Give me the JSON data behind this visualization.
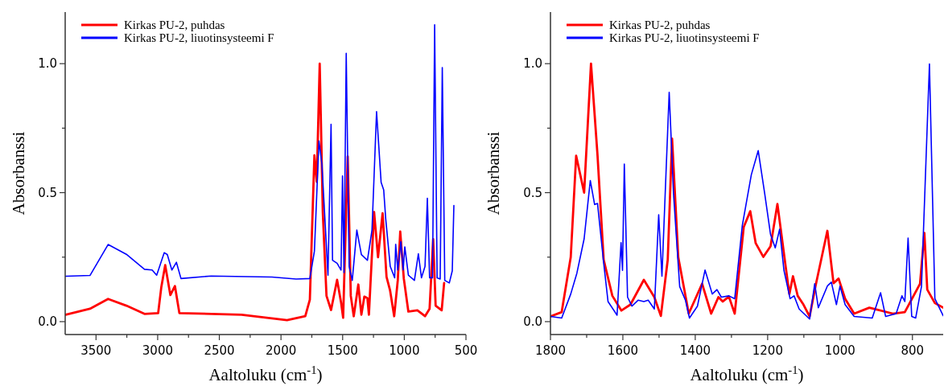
{
  "chart_data": [
    {
      "type": "line",
      "xlabel": "Aaltoluku (cm$^{-1}$)",
      "ylabel": "Absorbanssi",
      "legend": "top left",
      "grid": false,
      "xlim": [
        3750,
        500
      ],
      "xticks": [
        3500,
        3000,
        2500,
        2000,
        1500,
        1000,
        500,
        {
          "value": 3250,
          "label": null
        },
        {
          "value": 2750,
          "label": null
        },
        {
          "value": 2250,
          "label": null
        },
        {
          "value": 1750,
          "label": null
        },
        {
          "value": 1250,
          "label": null
        },
        {
          "value": 750,
          "label": null
        }
      ],
      "ylim": [
        -0.05,
        1.2
      ],
      "yticks": [
        {
          "value": 0,
          "label": "0.0"
        },
        {
          "value": 0.5,
          "label": "0.5"
        },
        {
          "value": 1,
          "label": "1.0"
        },
        {
          "value": 0.25,
          "label": null
        },
        {
          "value": 0.75,
          "label": null
        }
      ],
      "series": [
        {
          "name": "Kirkas PU-2, puhdas",
          "color": "#ff0000",
          "x": [
            3746,
            3549,
            3402,
            3254,
            3107,
            2996,
            2971,
            2939,
            2897,
            2860,
            2824,
            2320,
            1951,
            1803,
            1766,
            1729,
            1710,
            1686,
            1661,
            1631,
            1594,
            1545,
            1513,
            1496,
            1459,
            1434,
            1410,
            1373,
            1348,
            1324,
            1299,
            1287,
            1245,
            1213,
            1176,
            1144,
            1115,
            1082,
            1053,
            1033,
            1004,
            967,
            894,
            832,
            795,
            766,
            746,
            697,
            677
          ],
          "values": [
            0.027,
            0.05,
            0.088,
            0.062,
            0.03,
            0.033,
            0.132,
            0.219,
            0.103,
            0.138,
            0.033,
            0.027,
            0.006,
            0.021,
            0.085,
            0.645,
            0.542,
            1.0,
            0.425,
            0.1,
            0.045,
            0.162,
            0.075,
            0.015,
            0.64,
            0.1,
            0.021,
            0.144,
            0.027,
            0.097,
            0.091,
            0.027,
            0.425,
            0.25,
            0.42,
            0.173,
            0.12,
            0.021,
            0.16,
            0.349,
            0.167,
            0.039,
            0.044,
            0.021,
            0.05,
            0.32,
            0.062,
            0.044,
            0.15
          ]
        },
        {
          "name": "Kirkas PU-2, liuotinsysteemi F",
          "color": "#0000ff",
          "x": [
            3746,
            3549,
            3402,
            3254,
            3107,
            3045,
            3008,
            2947,
            2922,
            2885,
            2848,
            2811,
            2566,
            2074,
            1877,
            1766,
            1729,
            1692,
            1668,
            1619,
            1594,
            1582,
            1545,
            1513,
            1501,
            1489,
            1471,
            1447,
            1422,
            1385,
            1348,
            1299,
            1262,
            1225,
            1188,
            1167,
            1151,
            1114,
            1078,
            1070,
            1053,
            1028,
            1009,
            996,
            967,
            918,
            886,
            861,
            832,
            813,
            795,
            771,
            754,
            734,
            709,
            692,
            672,
            635,
            611,
            598
          ],
          "values": [
            0.176,
            0.179,
            0.299,
            0.261,
            0.203,
            0.2,
            0.18,
            0.267,
            0.26,
            0.2,
            0.23,
            0.167,
            0.177,
            0.173,
            0.165,
            0.167,
            0.273,
            0.7,
            0.61,
            0.18,
            0.765,
            0.238,
            0.226,
            0.2,
            0.565,
            0.19,
            1.04,
            0.214,
            0.16,
            0.355,
            0.26,
            0.238,
            0.355,
            0.814,
            0.54,
            0.51,
            0.4,
            0.214,
            0.17,
            0.3,
            0.2,
            0.31,
            0.2,
            0.29,
            0.18,
            0.16,
            0.263,
            0.17,
            0.214,
            0.478,
            0.17,
            0.17,
            1.151,
            0.17,
            0.165,
            0.985,
            0.16,
            0.15,
            0.197,
            0.45
          ]
        }
      ]
    },
    {
      "type": "line",
      "xlabel": "Aaltoluku (cm$^{-1}$)",
      "ylabel": "Absorbanssi",
      "legend": "top left",
      "grid": false,
      "xlim": [
        1800,
        715
      ],
      "xticks": [
        1800,
        1600,
        1400,
        1200,
        1000,
        800,
        {
          "value": 1700,
          "label": null
        },
        {
          "value": 1500,
          "label": null
        },
        {
          "value": 1300,
          "label": null
        },
        {
          "value": 1100,
          "label": null
        },
        {
          "value": 900,
          "label": null
        }
      ],
      "ylim": [
        -0.05,
        1.2
      ],
      "yticks": [
        {
          "value": 0,
          "label": "0.0"
        },
        {
          "value": 0.5,
          "label": "0.5"
        },
        {
          "value": 1,
          "label": "1.0"
        },
        {
          "value": 0.25,
          "label": null
        },
        {
          "value": 0.75,
          "label": null
        }
      ],
      "series": [
        {
          "name": "Kirkas PU-2, puhdas",
          "color": "#ff0000",
          "x": [
            1800,
            1769,
            1744,
            1729,
            1707,
            1688,
            1670,
            1653,
            1629,
            1604,
            1579,
            1542,
            1513,
            1495,
            1476,
            1464,
            1447,
            1431,
            1418,
            1381,
            1356,
            1336,
            1324,
            1307,
            1291,
            1266,
            1248,
            1233,
            1212,
            1192,
            1173,
            1150,
            1140,
            1130,
            1117,
            1101,
            1084,
            1068,
            1035,
            1018,
            1004,
            986,
            961,
            919,
            854,
            821,
            779,
            767,
            759,
            738,
            715
          ],
          "values": [
            0.02,
            0.037,
            0.25,
            0.643,
            0.5,
            1.0,
            0.645,
            0.24,
            0.1,
            0.043,
            0.066,
            0.162,
            0.095,
            0.022,
            0.24,
            0.709,
            0.25,
            0.13,
            0.031,
            0.147,
            0.031,
            0.095,
            0.078,
            0.097,
            0.031,
            0.367,
            0.428,
            0.304,
            0.251,
            0.292,
            0.456,
            0.211,
            0.107,
            0.176,
            0.1,
            0.066,
            0.02,
            0.136,
            0.352,
            0.149,
            0.167,
            0.089,
            0.031,
            0.054,
            0.031,
            0.037,
            0.147,
            0.344,
            0.124,
            0.072,
            0.054
          ]
        },
        {
          "name": "Kirkas PU-2, liuotinsysteemi F",
          "color": "#0000ff",
          "x": [
            1800,
            1769,
            1744,
            1727,
            1707,
            1690,
            1678,
            1670,
            1653,
            1641,
            1616,
            1605,
            1601,
            1596,
            1587,
            1575,
            1558,
            1542,
            1530,
            1513,
            1501,
            1492,
            1472,
            1460,
            1443,
            1427,
            1416,
            1394,
            1373,
            1353,
            1340,
            1328,
            1307,
            1291,
            1270,
            1245,
            1226,
            1208,
            1192,
            1179,
            1167,
            1155,
            1138,
            1127,
            1113,
            1084,
            1070,
            1060,
            1035,
            1024,
            1010,
            1000,
            986,
            961,
            911,
            888,
            874,
            845,
            829,
            821,
            812,
            802,
            791,
            775,
            753,
            738,
            715
          ],
          "values": [
            0.02,
            0.014,
            0.107,
            0.188,
            0.321,
            0.547,
            0.454,
            0.458,
            0.228,
            0.078,
            0.025,
            0.306,
            0.199,
            0.611,
            0.095,
            0.06,
            0.083,
            0.078,
            0.083,
            0.049,
            0.414,
            0.176,
            0.889,
            0.495,
            0.136,
            0.083,
            0.014,
            0.06,
            0.2,
            0.107,
            0.124,
            0.095,
            0.1,
            0.089,
            0.373,
            0.57,
            0.663,
            0.495,
            0.338,
            0.286,
            0.358,
            0.199,
            0.089,
            0.1,
            0.049,
            0.01,
            0.147,
            0.054,
            0.138,
            0.153,
            0.066,
            0.138,
            0.066,
            0.02,
            0.014,
            0.112,
            0.02,
            0.031,
            0.1,
            0.078,
            0.324,
            0.02,
            0.014,
            0.136,
            0.999,
            0.089,
            0.023
          ]
        }
      ]
    }
  ]
}
